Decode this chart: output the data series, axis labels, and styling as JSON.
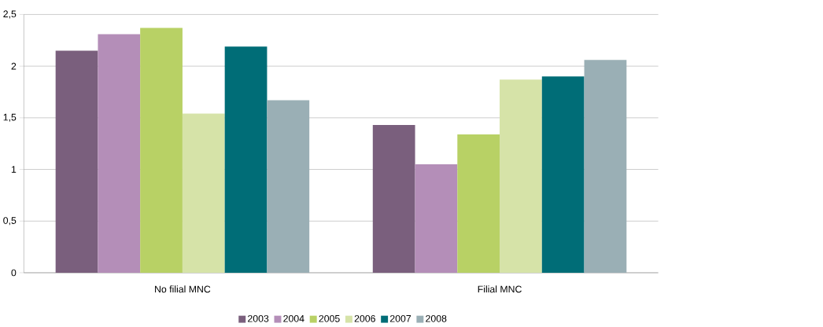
{
  "chart_data": {
    "type": "bar",
    "categories": [
      "No filial MNC",
      "Filial MNC"
    ],
    "series": [
      {
        "name": "2003",
        "color": "#7a5f7d",
        "values": [
          2.15,
          1.43
        ]
      },
      {
        "name": "2004",
        "color": "#b48eb8",
        "values": [
          2.31,
          1.05
        ]
      },
      {
        "name": "2005",
        "color": "#b8d165",
        "values": [
          2.37,
          1.34
        ]
      },
      {
        "name": "2006",
        "color": "#d6e3a8",
        "values": [
          1.54,
          1.87
        ]
      },
      {
        "name": "2007",
        "color": "#006d77",
        "values": [
          2.19,
          1.9
        ]
      },
      {
        "name": "2008",
        "color": "#9aafb5",
        "values": [
          1.67,
          2.06
        ]
      }
    ],
    "ylim": [
      0,
      2.5
    ],
    "yticks": [
      0,
      {
        "value": 0.5,
        "label": "0,5"
      },
      1,
      {
        "value": 1.5,
        "label": "1,5"
      },
      2,
      {
        "value": 2.5,
        "label": "2,5"
      }
    ],
    "grid": "y",
    "legend": "bottom"
  }
}
